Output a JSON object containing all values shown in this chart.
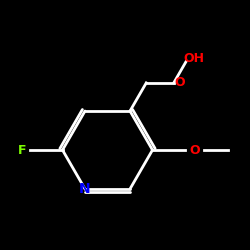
{
  "background_color": "#000000",
  "bond_color": "#ffffff",
  "atom_colors": {
    "F": "#7cfc00",
    "N": "#0000ff",
    "O": "#ff0000",
    "C": "#ffffff",
    "H": "#ffffff"
  },
  "figsize": [
    2.5,
    2.5
  ],
  "dpi": 100
}
